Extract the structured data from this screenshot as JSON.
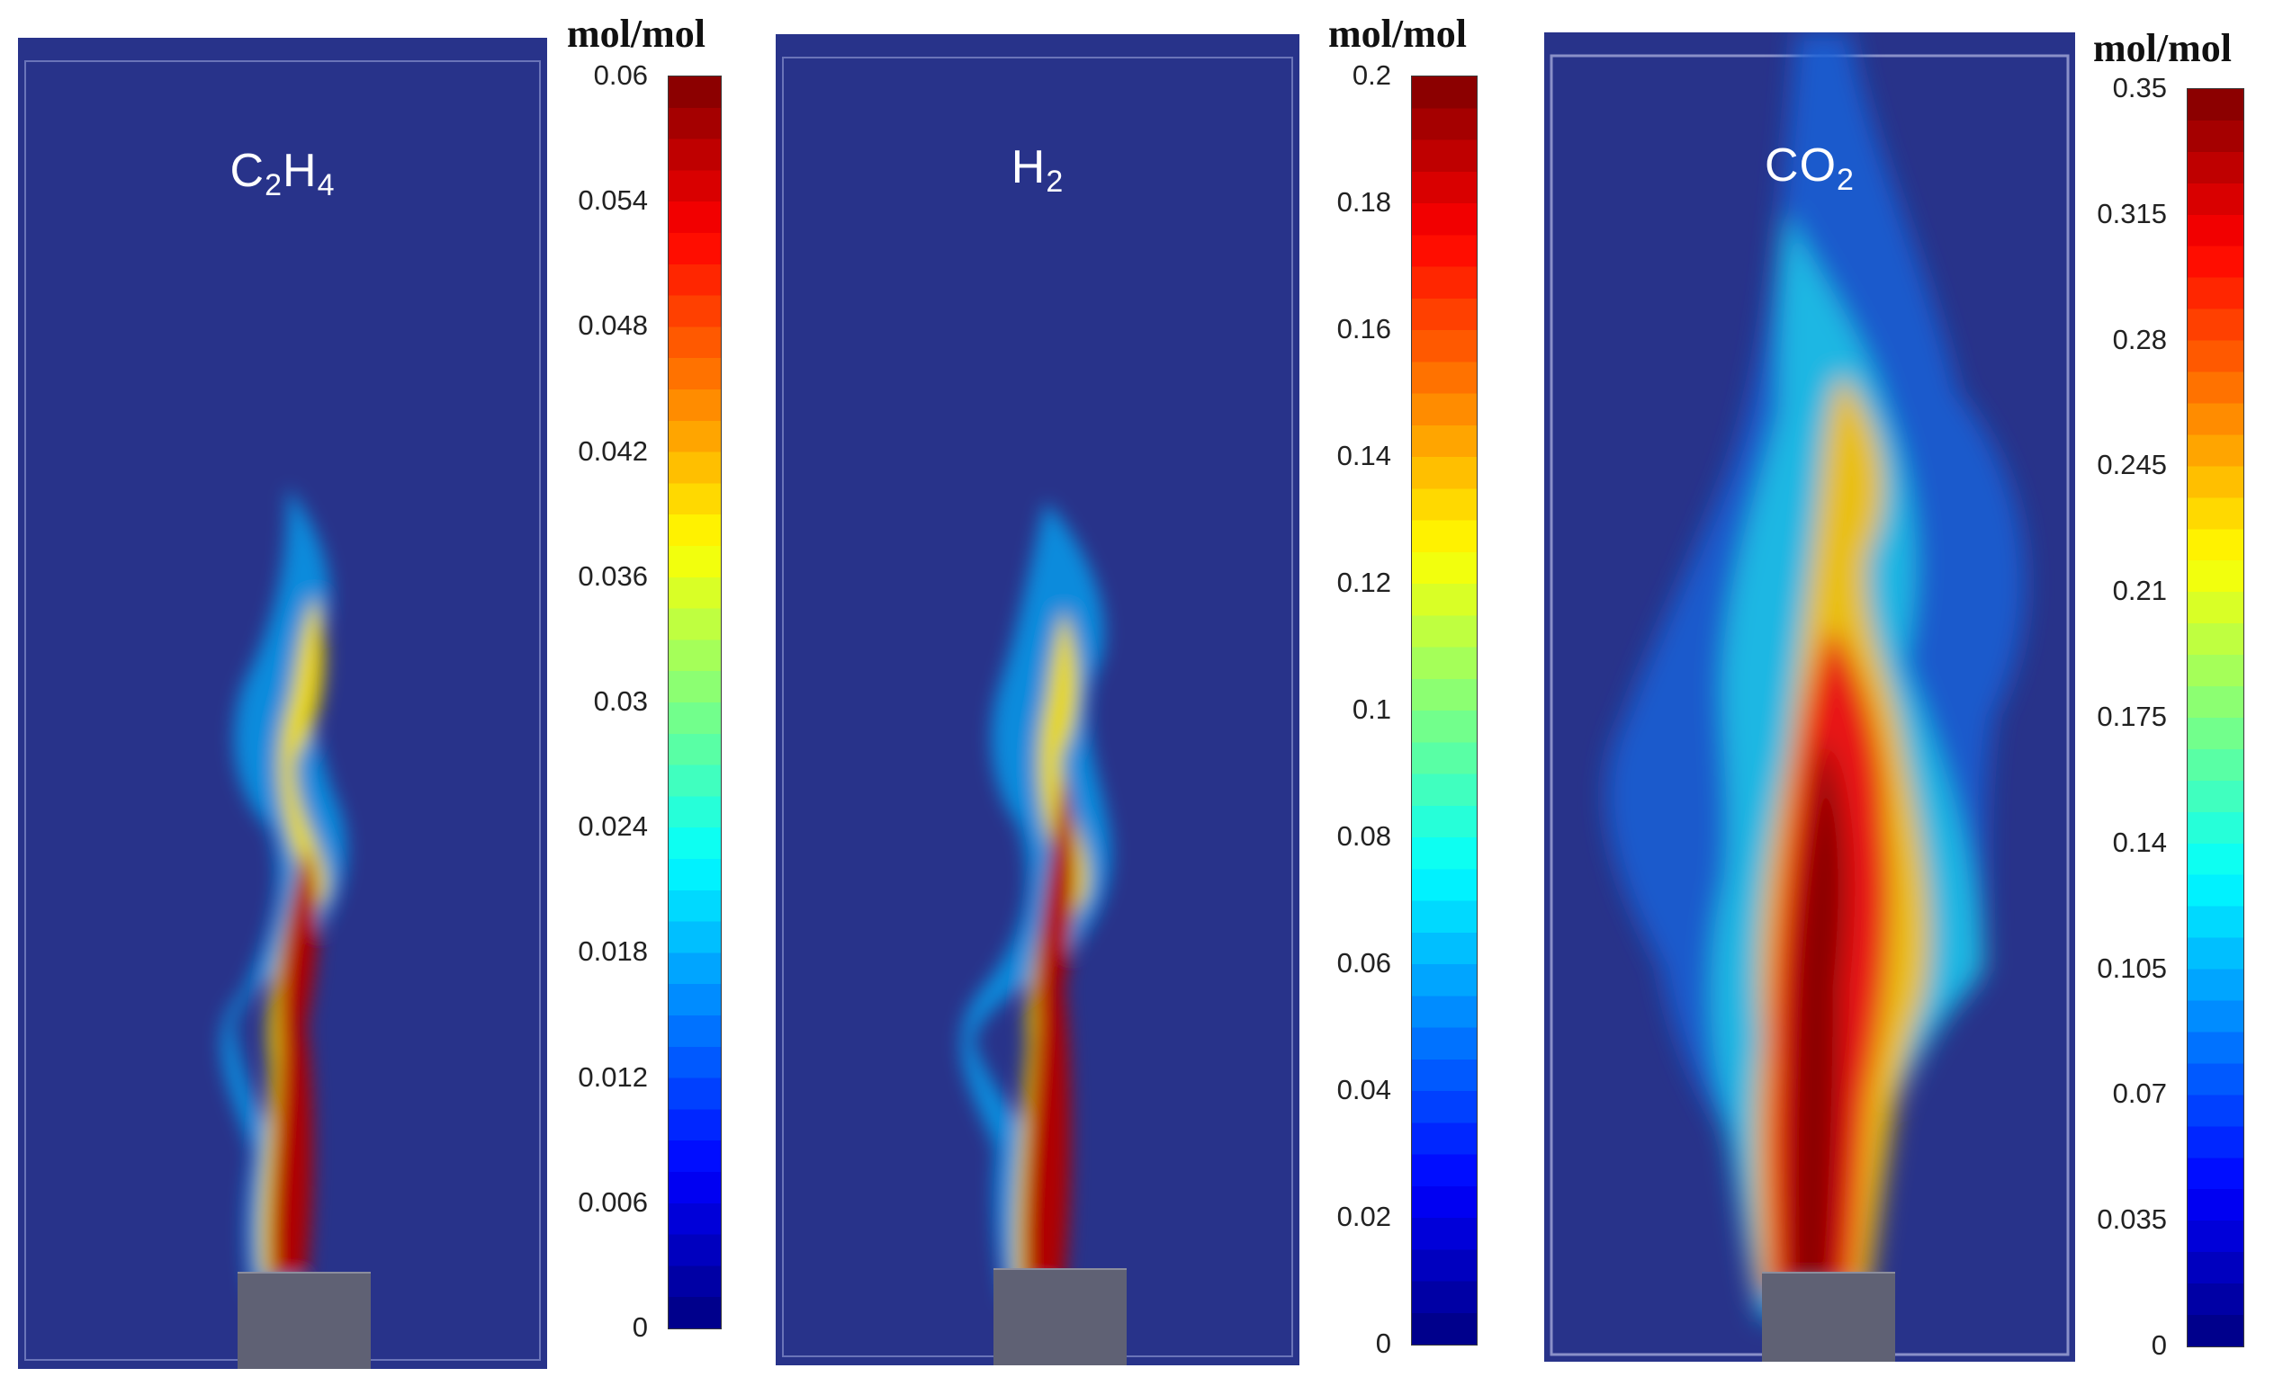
{
  "chart_data": [
    {
      "type": "heatmap",
      "title": "C2H4",
      "species": "C",
      "species_sub1": "2",
      "species_mid": "H",
      "species_sub2": "4",
      "unit": "mol/mol",
      "colorbar_ticks": [
        "0.06",
        "0.054",
        "0.048",
        "0.042",
        "0.036",
        "0.03",
        "0.024",
        "0.018",
        "0.012",
        "0.006",
        "0"
      ],
      "range": [
        0,
        0.06
      ],
      "peak_value": 0.06
    },
    {
      "type": "heatmap",
      "title": "H2",
      "species": "H",
      "species_sub1": "2",
      "unit": "mol/mol",
      "colorbar_ticks": [
        "0.2",
        "0.18",
        "0.16",
        "0.14",
        "0.12",
        "0.1",
        "0.08",
        "0.06",
        "0.04",
        "0.02",
        "0"
      ],
      "range": [
        0,
        0.2
      ],
      "peak_value": 0.2
    },
    {
      "type": "heatmap",
      "title": "CO2",
      "species": "CO",
      "species_sub1": "2",
      "unit": "mol/mol",
      "colorbar_ticks": [
        "0.35",
        "0.315",
        "0.28",
        "0.245",
        "0.21",
        "0.175",
        "0.14",
        "0.105",
        "0.07",
        "0.035",
        "0"
      ],
      "range": [
        0,
        0.35
      ],
      "peak_value": 0.35
    }
  ],
  "colors": {
    "background_field": "#28338a",
    "jet_palette": [
      "#00007f",
      "#0000ff",
      "#007fff",
      "#00ffff",
      "#7fff7f",
      "#ffff00",
      "#ff7f00",
      "#ff0000",
      "#7f0000"
    ],
    "nozzle": "#5f6174"
  }
}
